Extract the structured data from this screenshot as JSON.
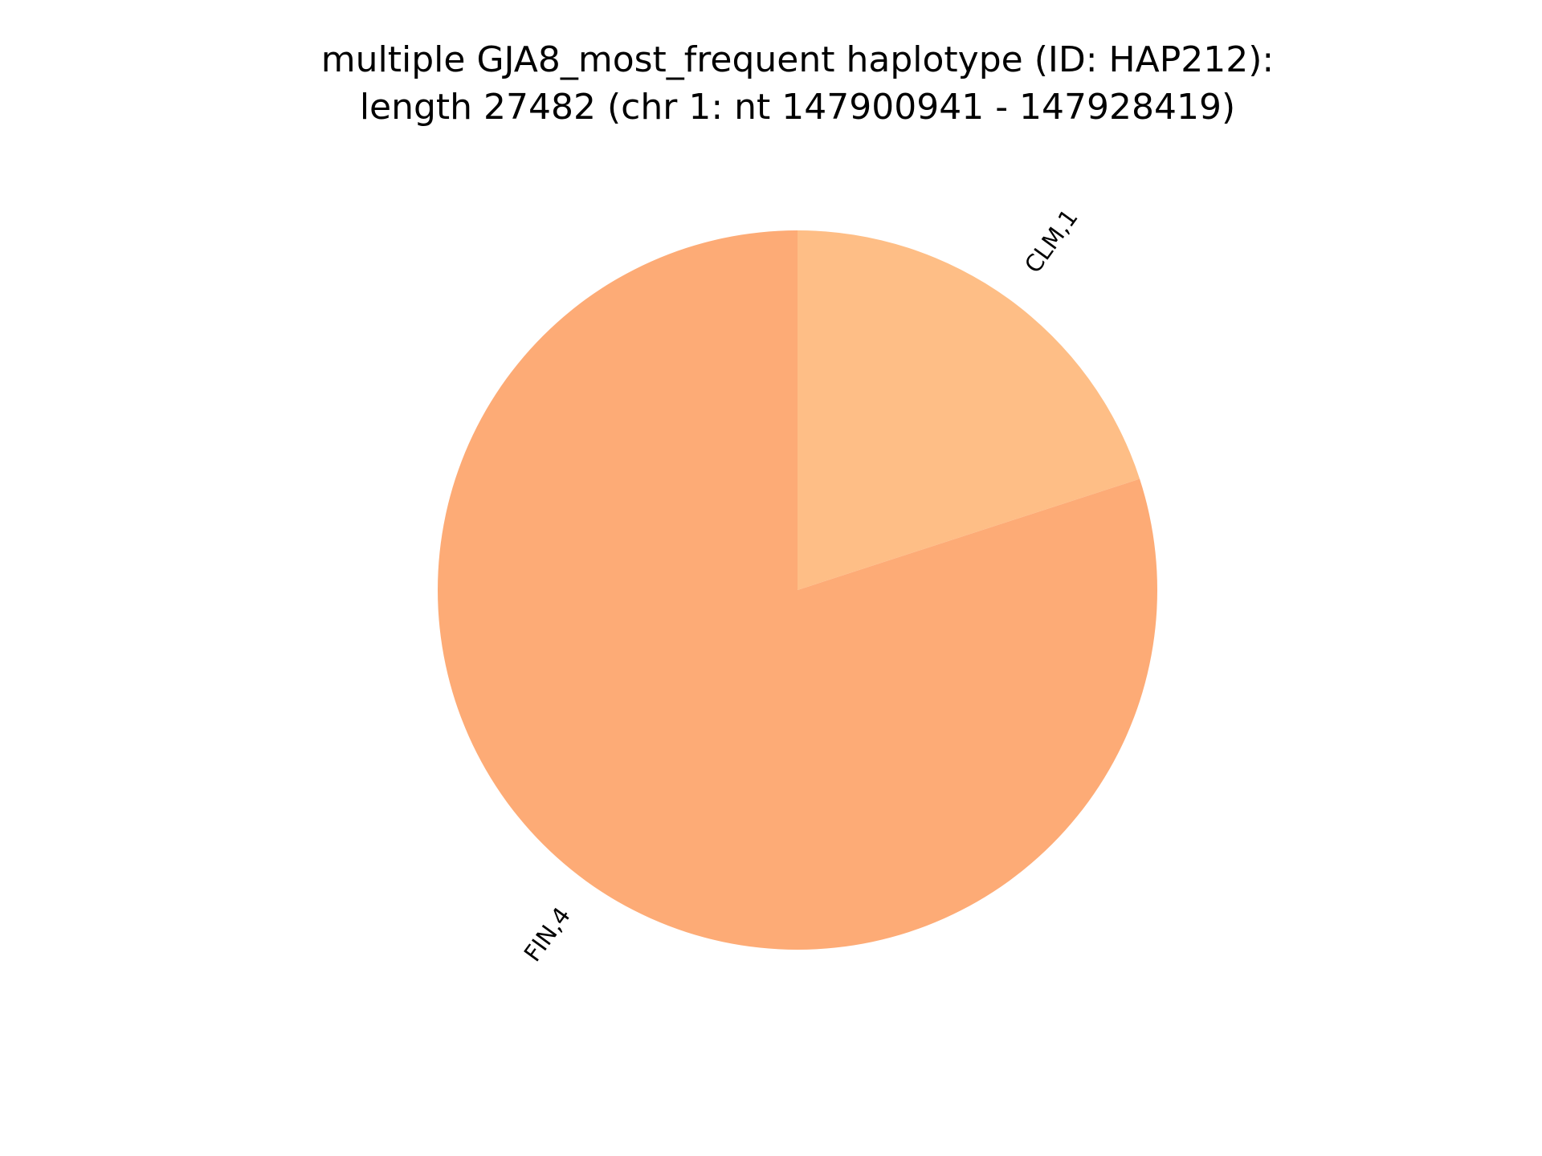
{
  "chart_data": {
    "type": "pie",
    "title_lines": [
      "multiple GJA8_most_frequent haplotype (ID: HAP212):",
      "length 27482 (chr 1: nt 147900941 - 147928419)"
    ],
    "slices": [
      {
        "label": "CLM,1",
        "value": 1,
        "color": "#febe86"
      },
      {
        "label": "FIN,4",
        "value": 4,
        "color": "#fdab76"
      }
    ],
    "start_angle_deg": 90,
    "direction": "clockwise"
  }
}
